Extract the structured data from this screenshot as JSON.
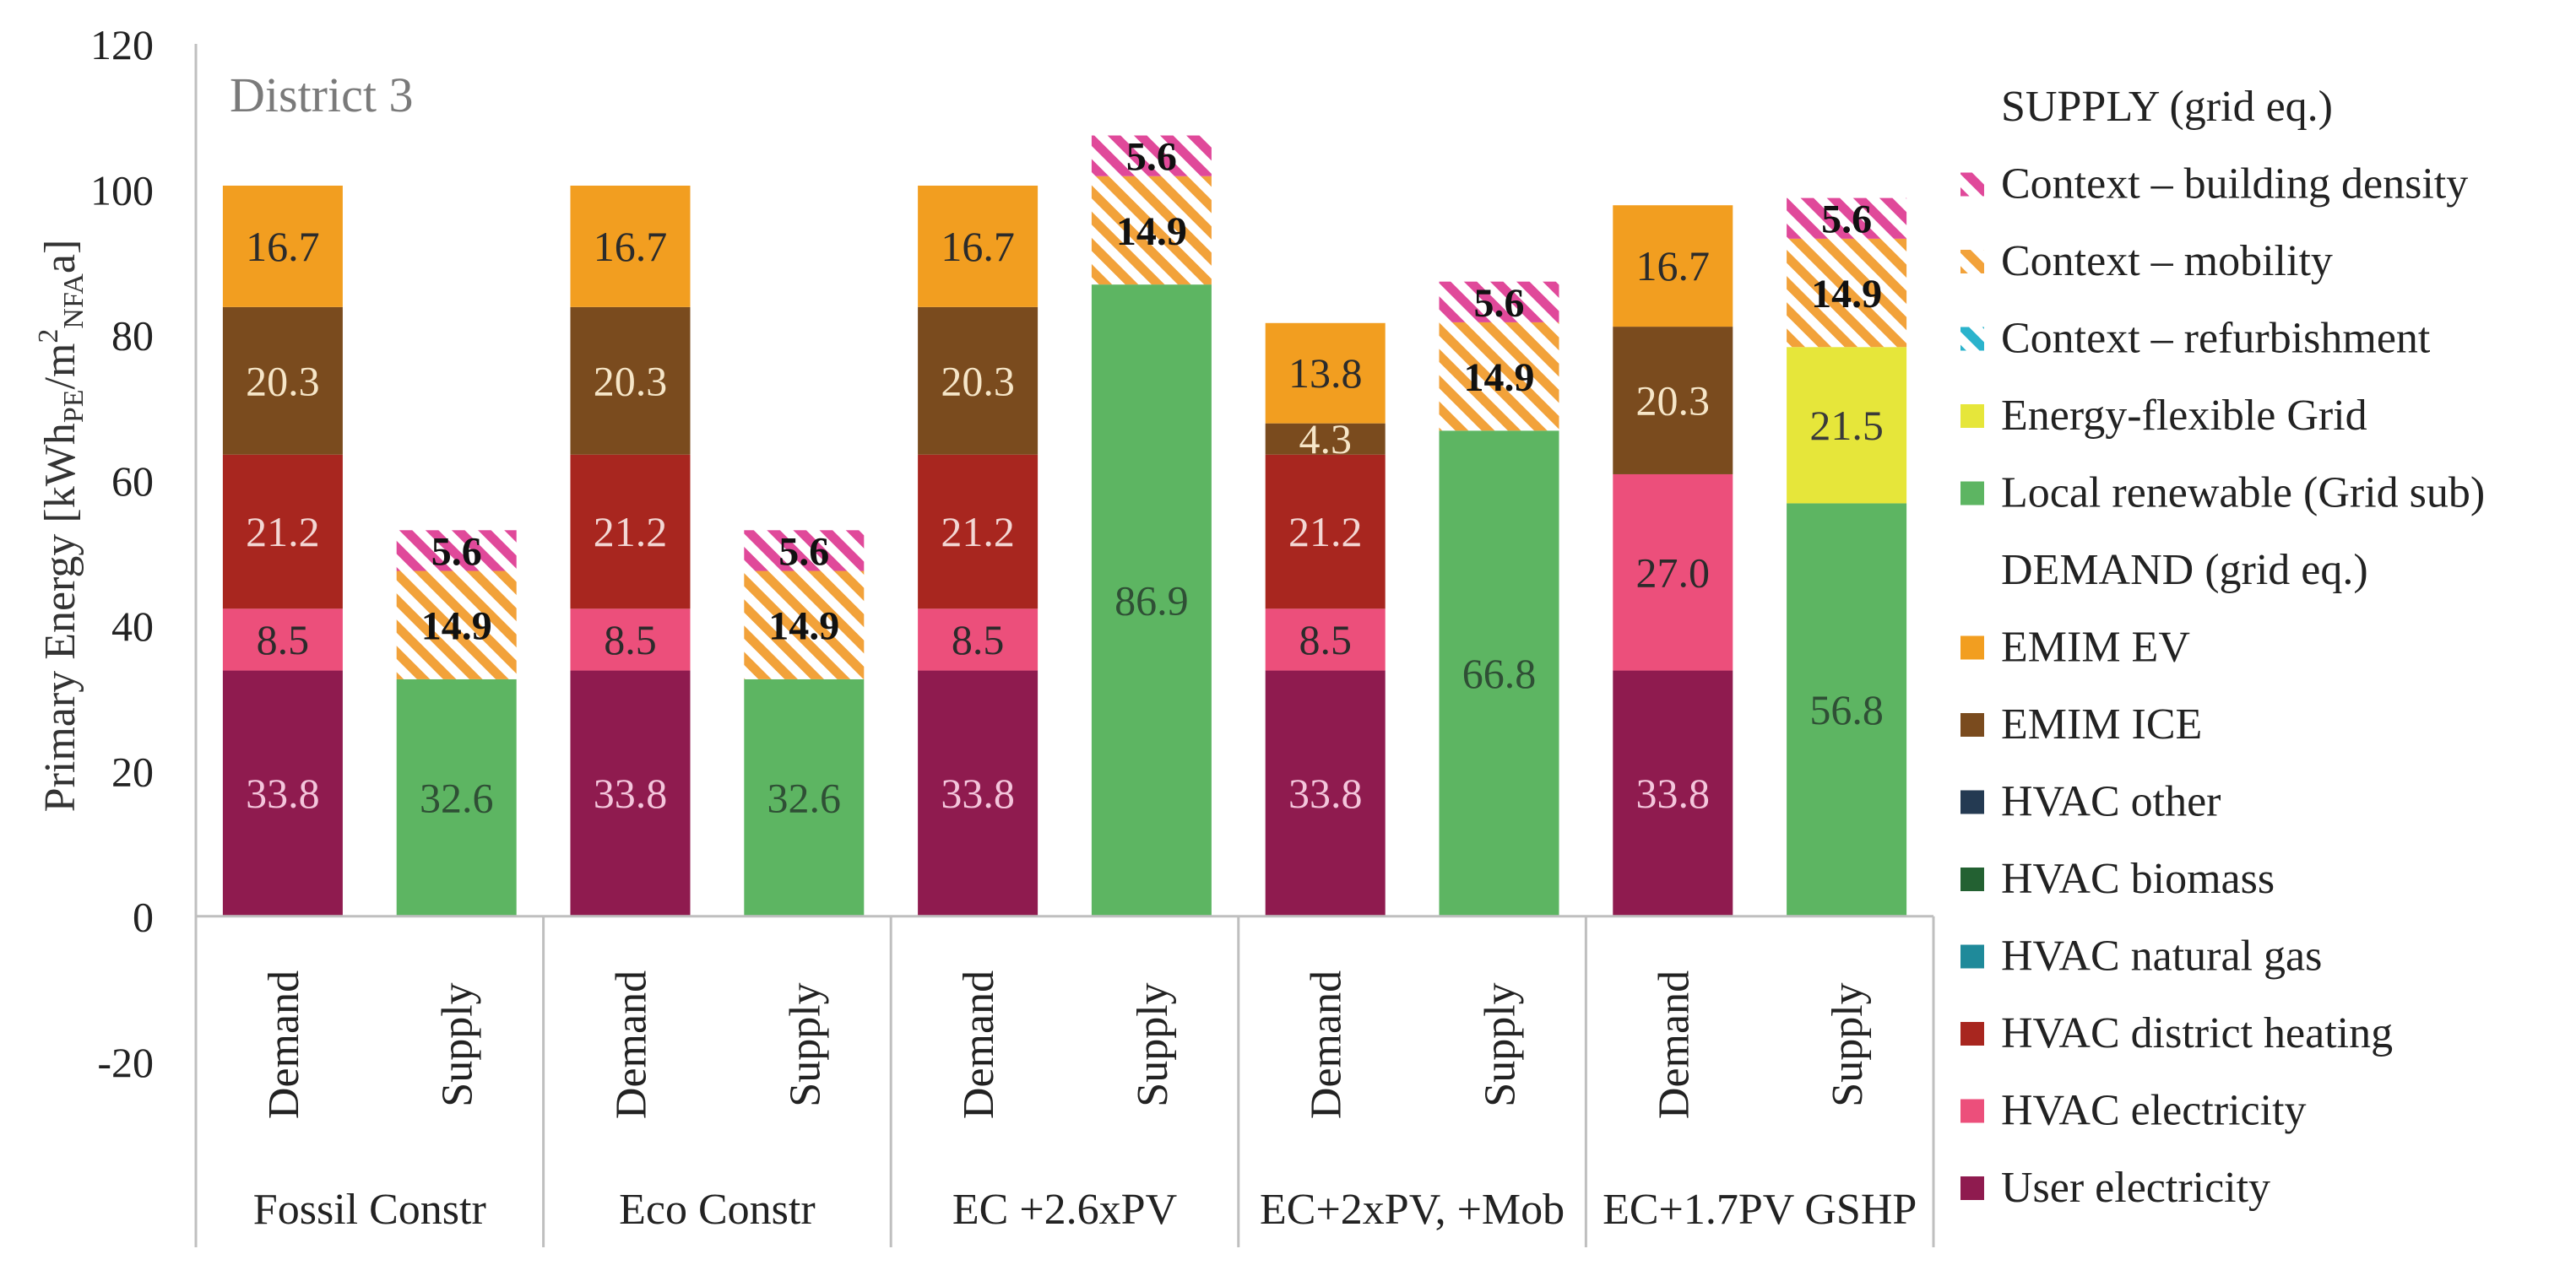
{
  "chart_data": {
    "type": "bar",
    "stacked": true,
    "title": "District 3",
    "ylabel": "Primary Energy [kWhPE/m²NFAa]",
    "ylabel_parts": {
      "pre": "Primary Energy [kWh",
      "sub1": "PE",
      "mid": "/m",
      "sup": "2",
      "sub2": "NFA",
      "post": "a]"
    },
    "ylim": [
      -20,
      120
    ],
    "yticks": [
      -20,
      0,
      20,
      40,
      60,
      80,
      100,
      120
    ],
    "grid": false,
    "legend_position": "right",
    "groups": [
      "Fossil Constr",
      "Eco Constr",
      "EC +2.6xPV",
      "EC+2xPV, +Mob",
      "EC+1.7PV GSHP"
    ],
    "categories": [
      {
        "group": "Fossil Constr",
        "label": "Demand"
      },
      {
        "group": "Fossil Constr",
        "label": "Supply"
      },
      {
        "group": "Eco Constr",
        "label": "Demand"
      },
      {
        "group": "Eco Constr",
        "label": "Supply"
      },
      {
        "group": "EC +2.6xPV",
        "label": "Demand"
      },
      {
        "group": "EC +2.6xPV",
        "label": "Supply"
      },
      {
        "group": "EC+2xPV, +Mob",
        "label": "Demand"
      },
      {
        "group": "EC+2xPV, +Mob",
        "label": "Supply"
      },
      {
        "group": "EC+1.7PV GSHP",
        "label": "Demand"
      },
      {
        "group": "EC+1.7PV GSHP",
        "label": "Supply"
      }
    ],
    "legend_sections": [
      {
        "heading": "SUPPLY (grid eq.)",
        "items": [
          "Context – building density",
          "Context – mobility",
          "Context – refurbishment",
          "Energy-flexible Grid",
          "Local renewable (Grid sub)"
        ]
      },
      {
        "heading": "DEMAND (grid eq.)",
        "items": [
          "EMIM EV",
          "EMIM ICE",
          "HVAC other",
          "HVAC biomass",
          "HVAC natural gas",
          "HVAC district heating",
          "HVAC electricity",
          "User electricity"
        ]
      }
    ],
    "series": [
      {
        "name": "User electricity",
        "color": "#8f1b4f",
        "label_color": "#f4c6dc",
        "hatched": false,
        "values": [
          33.8,
          null,
          33.8,
          null,
          33.8,
          null,
          33.8,
          null,
          33.8,
          null
        ]
      },
      {
        "name": "HVAC electricity",
        "color": "#ec4f7b",
        "label_color": "#2b2b2b",
        "hatched": false,
        "values": [
          8.5,
          null,
          8.5,
          null,
          8.5,
          null,
          8.5,
          null,
          27.0,
          null
        ]
      },
      {
        "name": "HVAC natural gas",
        "color": "#1f8a9a",
        "label_color": "#ffffff",
        "hatched": false,
        "values": [
          null,
          null,
          null,
          null,
          null,
          null,
          null,
          null,
          null,
          null
        ]
      },
      {
        "name": "HVAC biomass",
        "color": "#236132",
        "label_color": "#ffffff",
        "hatched": false,
        "values": [
          null,
          null,
          null,
          null,
          null,
          null,
          null,
          null,
          null,
          null
        ]
      },
      {
        "name": "HVAC other",
        "color": "#243a52",
        "label_color": "#ffffff",
        "hatched": false,
        "values": [
          null,
          null,
          null,
          null,
          null,
          null,
          null,
          null,
          null,
          null
        ]
      },
      {
        "name": "HVAC district heating",
        "color": "#a8261f",
        "label_color": "#f3d7d4",
        "hatched": false,
        "values": [
          21.2,
          null,
          21.2,
          null,
          21.2,
          null,
          21.2,
          null,
          null,
          null
        ]
      },
      {
        "name": "EMIM ICE",
        "color": "#7a4b1e",
        "label_color": "#f6e6c8",
        "hatched": false,
        "values": [
          20.3,
          null,
          20.3,
          null,
          20.3,
          null,
          4.3,
          null,
          20.3,
          null
        ]
      },
      {
        "name": "EMIM EV",
        "color": "#f29e20",
        "label_color": "#2b2b2b",
        "hatched": false,
        "values": [
          16.7,
          null,
          16.7,
          null,
          16.7,
          null,
          13.8,
          null,
          16.7,
          null
        ]
      },
      {
        "name": "Local renewable (Grid sub)",
        "color": "#5db562",
        "label_color": "#2f4f35",
        "hatched": false,
        "values": [
          null,
          32.6,
          null,
          32.6,
          null,
          86.9,
          null,
          66.8,
          null,
          56.8
        ]
      },
      {
        "name": "Energy-flexible Grid",
        "color": "#e6e63a",
        "label_color": "#3a3a3a",
        "hatched": false,
        "values": [
          null,
          null,
          null,
          null,
          null,
          null,
          null,
          null,
          null,
          21.5
        ]
      },
      {
        "name": "Context – refurbishment",
        "color": "#2bb3cc",
        "label_color": "#111111",
        "hatched": true,
        "values": [
          null,
          null,
          null,
          null,
          null,
          null,
          null,
          null,
          null,
          null
        ]
      },
      {
        "name": "Context – mobility",
        "color": "#f2a23a",
        "label_color": "#111111",
        "hatched": true,
        "values": [
          null,
          14.9,
          null,
          14.9,
          null,
          14.9,
          null,
          14.9,
          null,
          14.9
        ]
      },
      {
        "name": "Context – building density",
        "color": "#e0499a",
        "label_color": "#111111",
        "hatched": true,
        "values": [
          null,
          5.6,
          null,
          5.6,
          null,
          5.6,
          null,
          5.6,
          null,
          5.6
        ]
      }
    ]
  }
}
